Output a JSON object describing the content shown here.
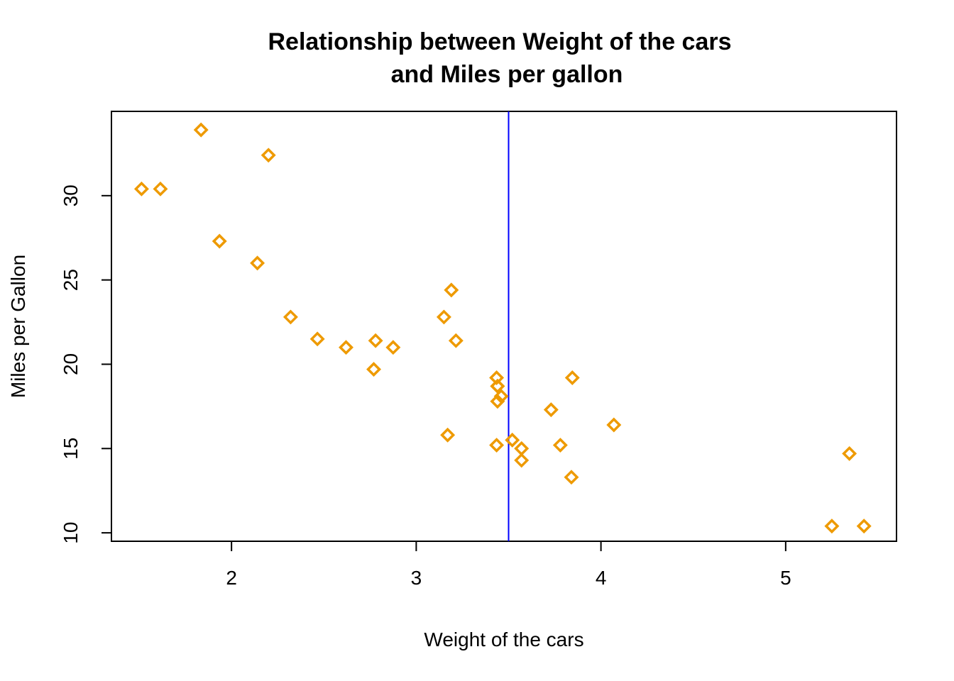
{
  "chart_data": {
    "type": "scatter",
    "title": [
      "Relationship between Weight of the cars",
      "and Miles per gallon"
    ],
    "xlabel": "Weight of the cars",
    "ylabel": "Miles per Gallon",
    "xlim": [
      1.35,
      5.6
    ],
    "ylim": [
      9.5,
      35.0
    ],
    "xticks": [
      2,
      3,
      4,
      5
    ],
    "yticks": [
      10,
      15,
      20,
      25,
      30
    ],
    "point_color": "#EE9A00",
    "vline": {
      "x": 3.5,
      "color": "#0000FF"
    },
    "grid": false,
    "series": [
      {
        "x": [
          1.513,
          1.615,
          1.835,
          1.935,
          2.14,
          2.2,
          2.32,
          2.465,
          2.62,
          2.77,
          2.78,
          2.875,
          3.15,
          3.17,
          3.19,
          3.215,
          3.435,
          3.435,
          3.44,
          3.44,
          3.44,
          3.46,
          3.52,
          3.57,
          3.57,
          3.73,
          3.78,
          3.84,
          3.845,
          4.07,
          5.25,
          5.345,
          5.424
        ],
        "y": [
          30.4,
          30.4,
          33.9,
          27.3,
          26.0,
          32.4,
          22.8,
          21.5,
          21.0,
          19.7,
          21.4,
          21.0,
          22.8,
          15.8,
          24.4,
          21.4,
          15.2,
          19.2,
          17.8,
          18.7,
          18.7,
          18.1,
          15.5,
          15.0,
          14.3,
          17.3,
          15.2,
          13.3,
          19.2,
          16.4,
          10.4,
          14.7,
          10.4
        ]
      }
    ]
  }
}
